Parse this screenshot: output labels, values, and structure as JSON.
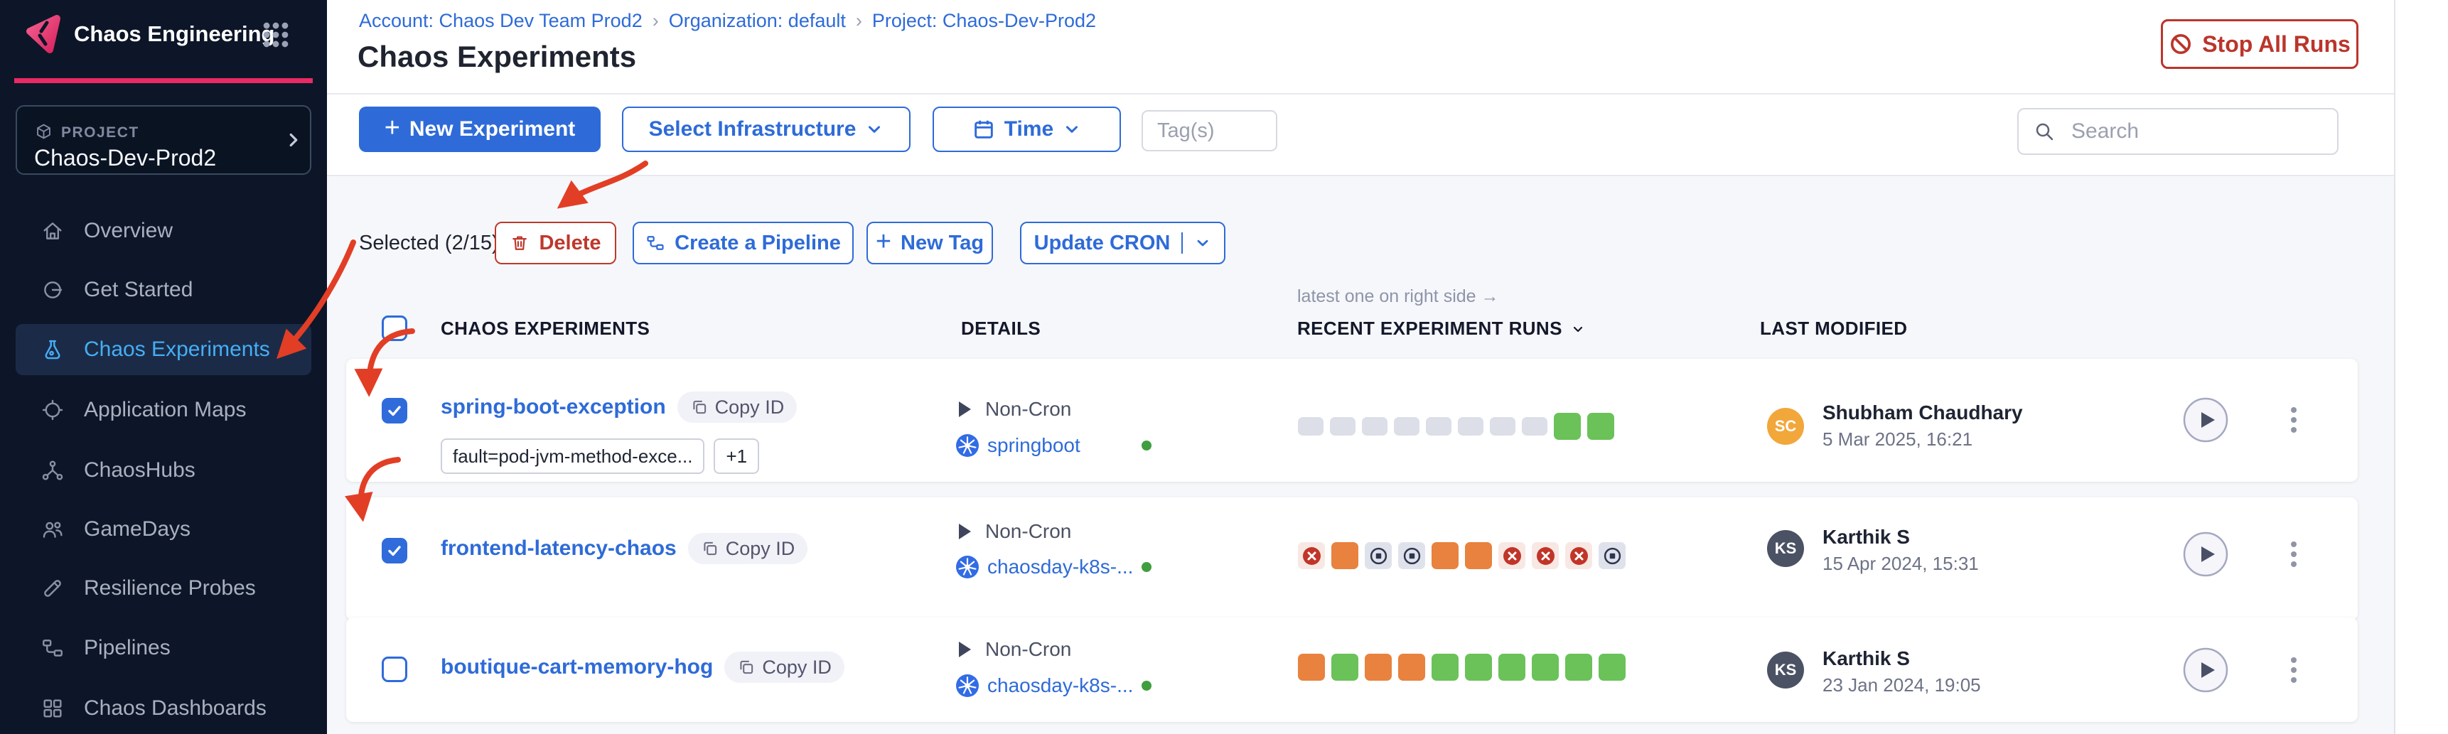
{
  "colors": {
    "accent_blue": "#2e6bd8",
    "sidebar_bg": "#0d1628",
    "brand_pink": "#e92a65",
    "danger_red": "#bb352b",
    "run_green": "#6ac259",
    "run_orange": "#e8823e",
    "run_gray": "#dcdee8",
    "failed_red": "#c13528",
    "active_item_blue": "#45aef5"
  },
  "sidebar": {
    "app_title": "Chaos Engineering",
    "project_label": "PROJECT",
    "project_name": "Chaos-Dev-Prod2",
    "items": [
      {
        "label": "Overview"
      },
      {
        "label": "Get Started"
      },
      {
        "label": "Chaos Experiments"
      },
      {
        "label": "Application Maps"
      },
      {
        "label": "ChaosHubs"
      },
      {
        "label": "GameDays"
      },
      {
        "label": "Resilience Probes"
      },
      {
        "label": "Pipelines"
      },
      {
        "label": "Chaos Dashboards"
      }
    ]
  },
  "header": {
    "breadcrumb": [
      {
        "label": "Account: Chaos Dev Team Prod2"
      },
      {
        "label": "Organization: default"
      },
      {
        "label": "Project: Chaos-Dev-Prod2"
      }
    ],
    "title": "Chaos Experiments",
    "stop_all_runs": "Stop All Runs"
  },
  "toolbar": {
    "new_experiment": "New Experiment",
    "select_infrastructure": "Select Infrastructure",
    "time": "Time",
    "tags_placeholder": "Tag(s)",
    "search_placeholder": "Search"
  },
  "selection_bar": {
    "selected_label": "Selected (2/15)",
    "delete": "Delete",
    "create_pipeline": "Create a Pipeline",
    "new_tag": "New Tag",
    "update_cron": "Update CRON"
  },
  "table": {
    "runs_note": "latest one on right side →",
    "columns": {
      "experiments": "CHAOS EXPERIMENTS",
      "details": "DETAILS",
      "runs": "RECENT EXPERIMENT RUNS",
      "last_modified": "LAST MODIFIED"
    },
    "rows": [
      {
        "name": "spring-boot-exception",
        "checked": true,
        "copy_label": "Copy ID",
        "tags": [
          "fault=pod-jvm-method-exce...",
          "+1"
        ],
        "schedule": "Non-Cron",
        "infra": "springboot",
        "runs": [
          "queued",
          "queued",
          "queued",
          "queued",
          "queued",
          "queued",
          "queued",
          "queued",
          "passed",
          "passed"
        ],
        "author": {
          "initials": "SC",
          "name": "Shubham Chaudhary",
          "date": "5 Mar 2025, 16:21",
          "color": "#f2a73b"
        }
      },
      {
        "name": "frontend-latency-chaos",
        "checked": true,
        "copy_label": "Copy ID",
        "tags": [],
        "schedule": "Non-Cron",
        "infra": "chaosday-k8s-...",
        "runs": [
          "failed",
          "running",
          "stopped",
          "stopped",
          "running",
          "running",
          "failed",
          "failed",
          "failed",
          "stopped"
        ],
        "author": {
          "initials": "KS",
          "name": "Karthik S",
          "date": "15 Apr 2024, 15:31",
          "color": "#4b5264"
        }
      },
      {
        "name": "boutique-cart-memory-hog",
        "checked": false,
        "copy_label": "Copy ID",
        "tags": [],
        "schedule": "Non-Cron",
        "infra": "chaosday-k8s-...",
        "runs": [
          "running",
          "passed",
          "running",
          "running",
          "passed",
          "passed",
          "passed",
          "passed",
          "passed",
          "passed"
        ],
        "author": {
          "initials": "KS",
          "name": "Karthik S",
          "date": "23 Jan 2024, 19:05",
          "color": "#4b5264"
        }
      }
    ]
  }
}
